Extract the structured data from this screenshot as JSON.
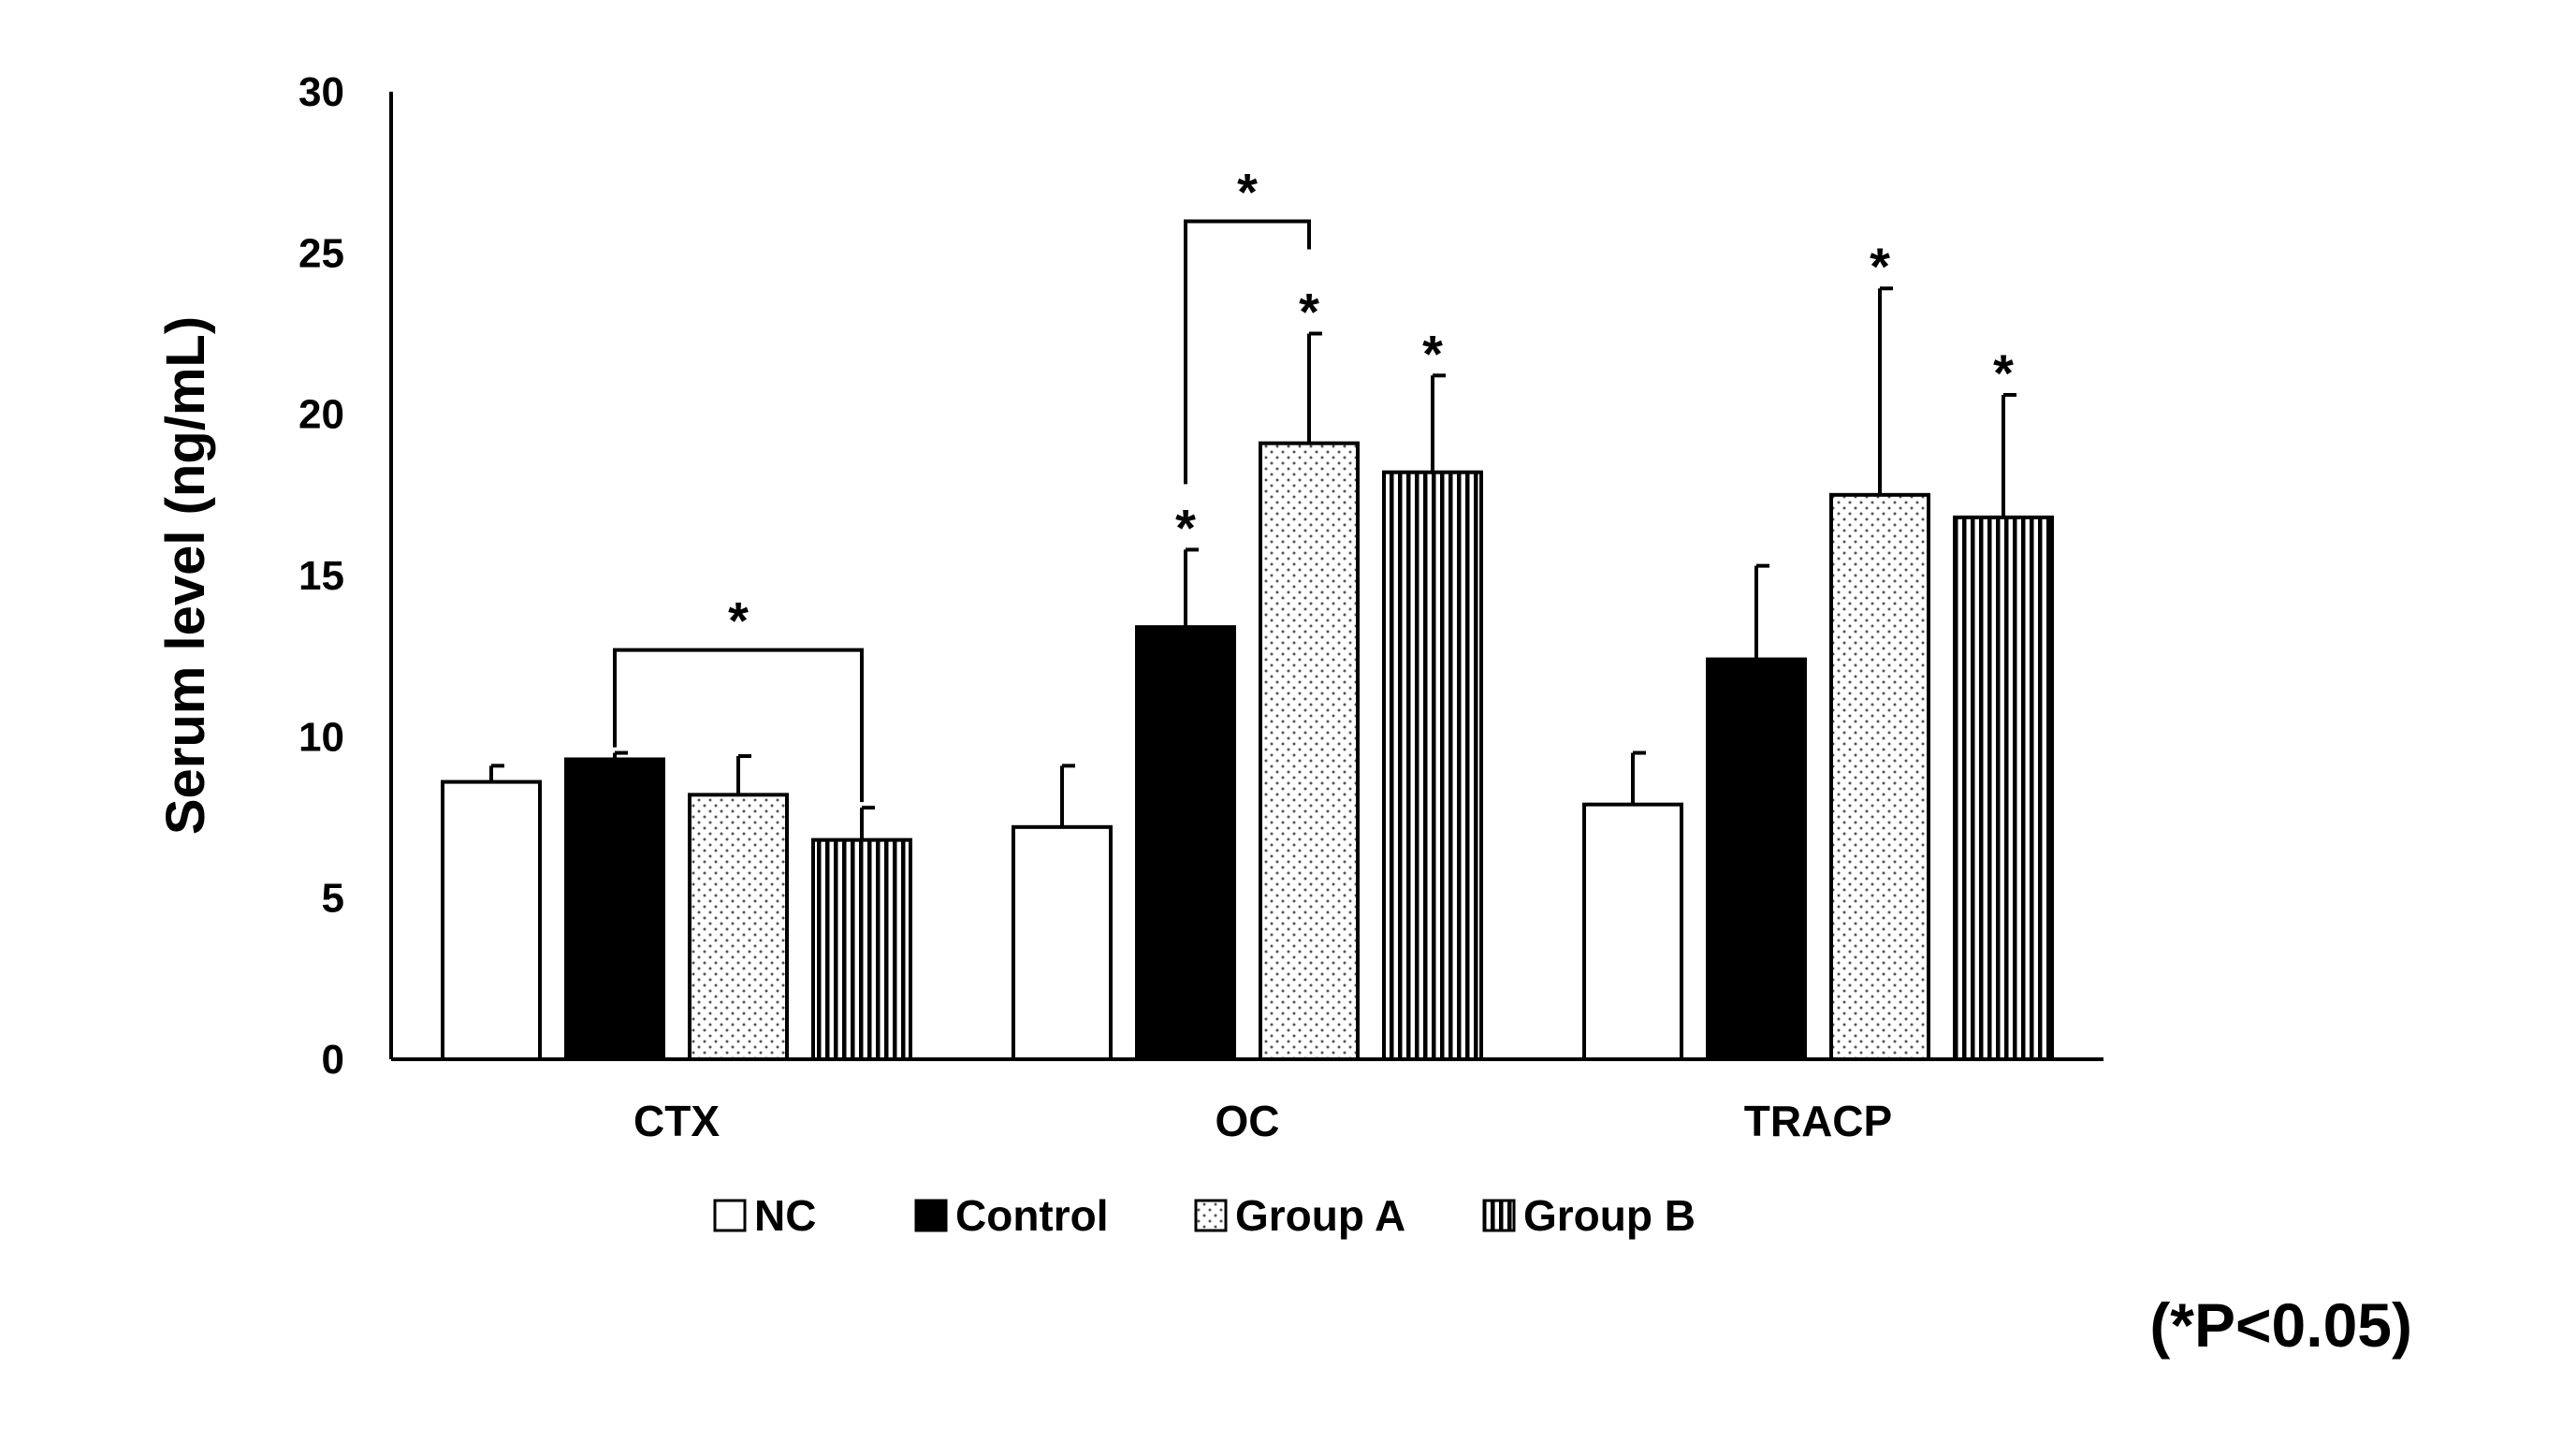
{
  "chart_data": {
    "type": "bar",
    "title": "",
    "xlabel": "",
    "ylabel": "Serum level (ng/mL)",
    "ylim": [
      0,
      30
    ],
    "yticks": [
      0,
      5,
      10,
      15,
      20,
      25,
      30
    ],
    "grid": false,
    "legend_position": "bottom",
    "categories": [
      "CTX",
      "OC",
      "TRACP"
    ],
    "series": [
      {
        "name": "NC",
        "pattern": "white",
        "values": [
          8.6,
          7.2,
          7.9
        ],
        "errors": [
          0.5,
          1.9,
          1.6
        ],
        "marks": [
          "",
          "",
          ""
        ]
      },
      {
        "name": "Control",
        "pattern": "black",
        "values": [
          9.3,
          13.4,
          12.4
        ],
        "errors": [
          0.2,
          2.4,
          2.9
        ],
        "marks": [
          "",
          "*",
          ""
        ]
      },
      {
        "name": "Group A",
        "pattern": "dots",
        "values": [
          8.2,
          19.1,
          17.5
        ],
        "errors": [
          1.2,
          3.4,
          6.4
        ],
        "marks": [
          "",
          "*",
          "*"
        ]
      },
      {
        "name": "Group B",
        "pattern": "vertical-lines",
        "values": [
          6.8,
          18.2,
          16.8
        ],
        "errors": [
          1.0,
          3.0,
          3.8
        ],
        "marks": [
          "",
          "*",
          "*"
        ]
      }
    ],
    "comparisons": [
      {
        "category": 0,
        "from_series": 1,
        "to_series": 3,
        "label": "*"
      },
      {
        "category": 1,
        "from_series": 1,
        "to_series": 2,
        "label": "*"
      }
    ],
    "significance_note": "(*P<0.05)"
  }
}
